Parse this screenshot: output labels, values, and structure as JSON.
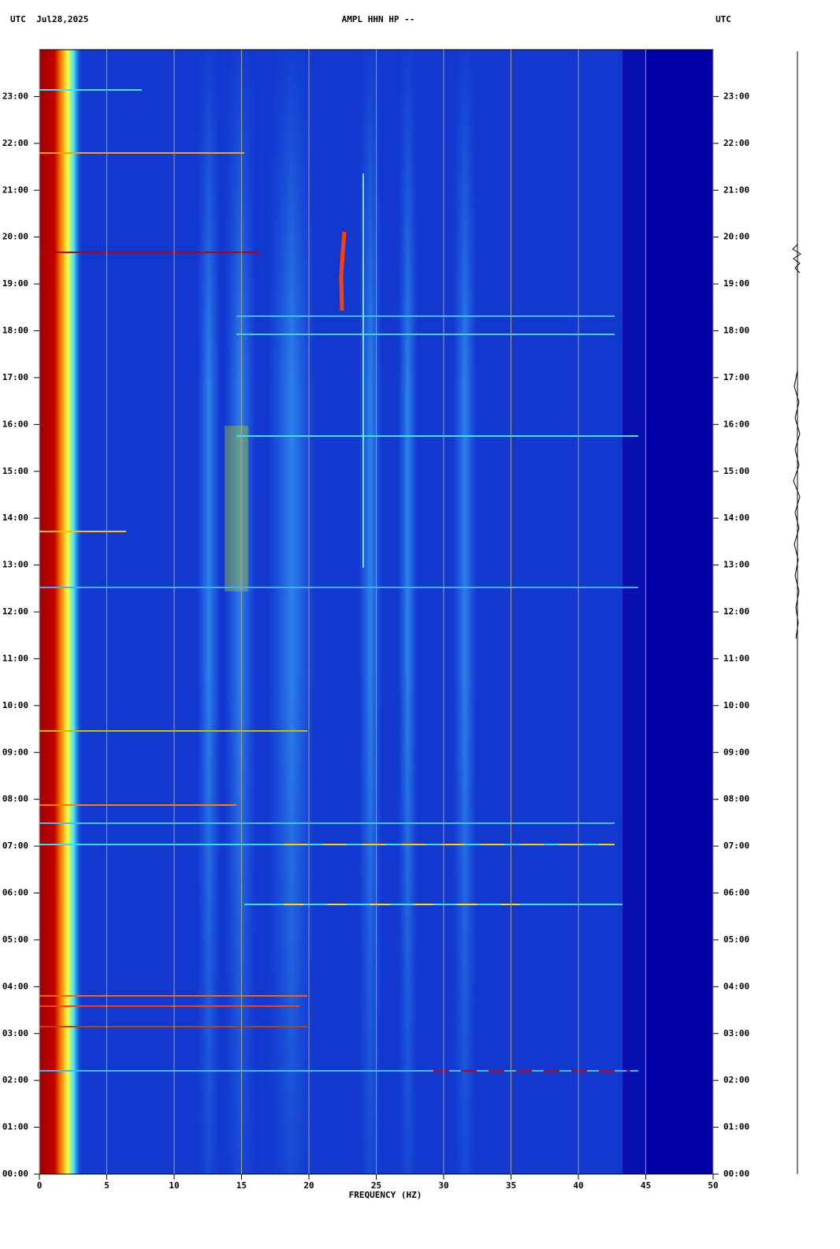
{
  "chart_data": {
    "type": "spectrogram",
    "title": "AMPL HHN HP --",
    "date_label": "UTC  Jul28,2025",
    "right_label": "UTC",
    "x_label": "FREQUENCY (HZ)",
    "xlim": [
      0,
      50
    ],
    "xticks": [
      0,
      5,
      10,
      15,
      20,
      25,
      30,
      35,
      40,
      45,
      50
    ],
    "ylim": [
      0,
      24
    ],
    "yticks": [
      {
        "value": 0,
        "label": "00:00"
      },
      {
        "value": 1,
        "label": "01:00"
      },
      {
        "value": 2,
        "label": "02:00"
      },
      {
        "value": 3,
        "label": "03:00"
      },
      {
        "value": 4,
        "label": "04:00"
      },
      {
        "value": 5,
        "label": "05:00"
      },
      {
        "value": 6,
        "label": "06:00"
      },
      {
        "value": 7,
        "label": "07:00"
      },
      {
        "value": 8,
        "label": "08:00"
      },
      {
        "value": 9,
        "label": "09:00"
      },
      {
        "value": 10,
        "label": "10:00"
      },
      {
        "value": 11,
        "label": "11:00"
      },
      {
        "value": 12,
        "label": "12:00"
      },
      {
        "value": 13,
        "label": "13:00"
      },
      {
        "value": 14,
        "label": "14:00"
      },
      {
        "value": 15,
        "label": "15:00"
      },
      {
        "value": 16,
        "label": "16:00"
      },
      {
        "value": 17,
        "label": "17:00"
      },
      {
        "value": 18,
        "label": "18:00"
      },
      {
        "value": 19,
        "label": "19:00"
      },
      {
        "value": 20,
        "label": "20:00"
      },
      {
        "value": 21,
        "label": "21:00"
      },
      {
        "value": 22,
        "label": "22:00"
      },
      {
        "value": 23,
        "label": "23:00"
      }
    ],
    "grid": true,
    "grid_color": "#a0a0a0"
  }
}
